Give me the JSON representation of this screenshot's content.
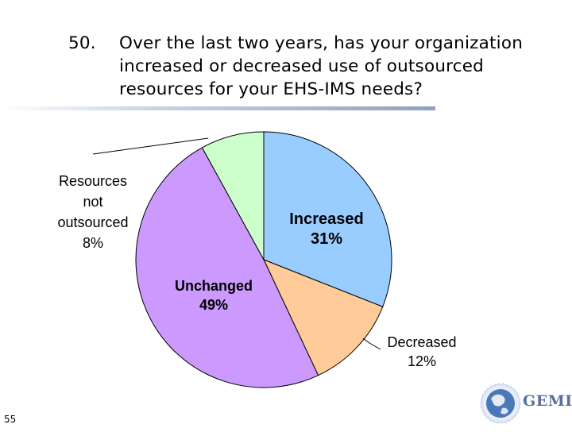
{
  "title": {
    "number": "50.",
    "lines": [
      "Over the last two years, has your organization",
      "increased or decreased use of outsourced",
      "resources for your EHS-IMS needs?"
    ]
  },
  "chart_data": {
    "type": "pie",
    "start_angle_deg": 0,
    "slices": [
      {
        "label": "Increased",
        "value": 31,
        "value_label": "31%",
        "color": "#99ccff",
        "bold": true
      },
      {
        "label": "Decreased",
        "value": 12,
        "value_label": "12%",
        "color": "#ffcc99",
        "bold": false
      },
      {
        "label": "Unchanged",
        "value": 49,
        "value_label": "49%",
        "color": "#cc99ff",
        "bold": true
      },
      {
        "label": "Resources not outsourced",
        "label_lines": [
          "Resources",
          "not",
          "outsourced"
        ],
        "value": 8,
        "value_label": "8%",
        "color": "#ccffcc",
        "bold": false
      }
    ]
  },
  "page_number": "55",
  "logo": {
    "text": "GEMI",
    "mark": "®"
  }
}
